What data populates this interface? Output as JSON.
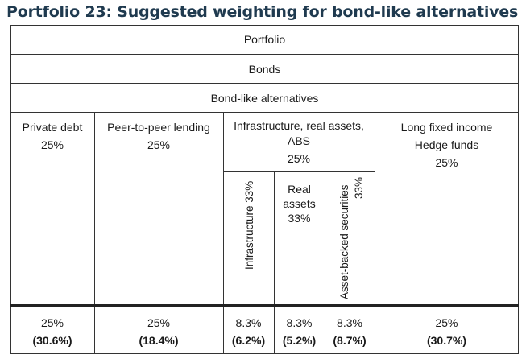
{
  "title": "Portfolio 23: Suggested weighting for bond-like alternatives",
  "rows": {
    "portfolio": "Portfolio",
    "bonds": "Bonds",
    "alternatives": "Bond-like alternatives"
  },
  "columns": [
    {
      "name": "Private debt",
      "weight": "25%",
      "bottom_weight": "25%",
      "bottom_actual": "(30.6%)"
    },
    {
      "name": "Peer-to-peer lending",
      "weight": "25%",
      "bottom_weight": "25%",
      "bottom_actual": "(18.4%)"
    },
    {
      "name_line1": "Infrastructure, real assets,",
      "name_line2": "ABS",
      "weight": "25%"
    },
    {
      "name_line1": "Long fixed income",
      "name_line2": "Hedge funds",
      "weight": "25%",
      "bottom_weight": "25%",
      "bottom_actual": "(30.7%)"
    }
  ],
  "subcolumns": [
    {
      "label": "Infrastructure 33%",
      "bottom_weight": "8.3%",
      "bottom_actual": "(6.2%)"
    },
    {
      "line1": "Real",
      "line2": "assets",
      "line3": "33%",
      "bottom_weight": "8.3%",
      "bottom_actual": "(5.2%)"
    },
    {
      "label_line1": "Asset-backed securities",
      "label_line2": "33%",
      "bottom_weight": "8.3%",
      "bottom_actual": "(8.7%)"
    }
  ]
}
